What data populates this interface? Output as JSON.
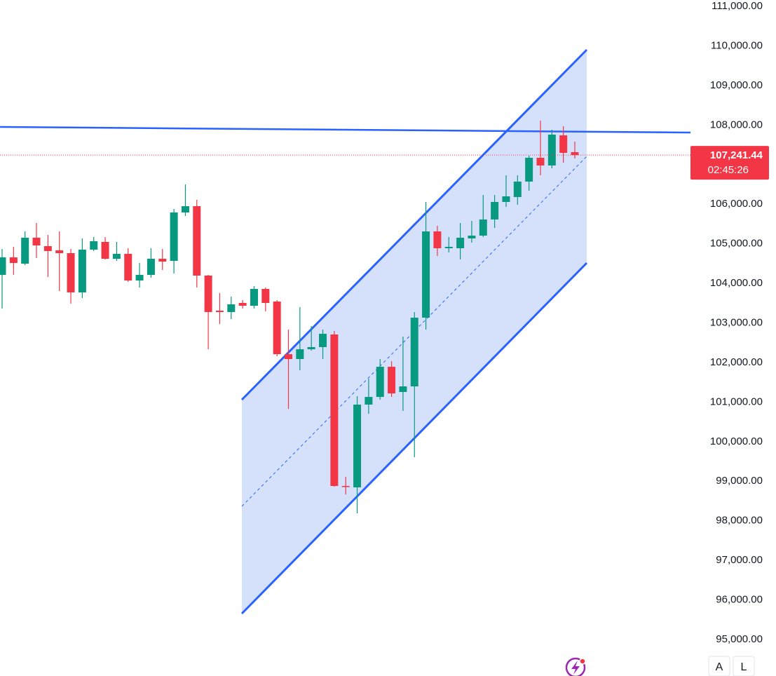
{
  "chart_data": {
    "type": "candlestick",
    "open": [
      104214,
      104657,
      104497,
      105153,
      104940,
      104834,
      104763,
      103771,
      104852,
      105047,
      104621,
      104745,
      104072,
      104214,
      104621,
      104568,
      105791,
      105950,
      104196,
      103310,
      103275,
      103505,
      103434,
      103859,
      103540,
      102211,
      102087,
      102335,
      102389,
      102708,
      98880,
      98845,
      100936,
      101130,
      101892,
      101255,
      101396,
      103133,
      105312,
      104887,
      104887,
      105135,
      105206,
      105614,
      106057,
      106181,
      106571,
      107173,
      106978,
      107740,
      107315
    ],
    "high": [
      104869,
      104923,
      105312,
      105525,
      105224,
      105312,
      104869,
      105135,
      105171,
      105171,
      105047,
      104887,
      104515,
      104887,
      104869,
      105879,
      106500,
      106110,
      104214,
      103753,
      103664,
      103576,
      103930,
      103895,
      103576,
      102832,
      103399,
      102920,
      102832,
      102796,
      99110,
      101148,
      101591,
      102087,
      102034,
      102654,
      103275,
      106057,
      105454,
      105171,
      105525,
      105578,
      106234,
      106234,
      106730,
      106730,
      107226,
      108112,
      107882,
      107970,
      107581
    ],
    "low": [
      103363,
      104214,
      104462,
      104639,
      104161,
      103806,
      103487,
      103629,
      104816,
      104604,
      104568,
      104037,
      103895,
      104143,
      104338,
      104249,
      105702,
      103895,
      102335,
      102973,
      103097,
      103363,
      103363,
      103292,
      102158,
      100829,
      101804,
      102300,
      102087,
      98862,
      98667,
      98189,
      100705,
      101060,
      101130,
      100776,
      99607,
      102832,
      104692,
      104781,
      104604,
      105029,
      105171,
      105401,
      105933,
      105986,
      106340,
      106730,
      106907,
      107049,
      107155
    ],
    "close": [
      104657,
      104515,
      105153,
      104958,
      104816,
      104763,
      103771,
      104852,
      105064,
      104621,
      104745,
      104072,
      104214,
      104621,
      104550,
      105791,
      105950,
      104196,
      103275,
      103275,
      103470,
      103434,
      103859,
      103505,
      102211,
      102087,
      102335,
      102389,
      102725,
      98880,
      98862,
      100936,
      101130,
      101892,
      101219,
      101396,
      103133,
      105312,
      104887,
      104923,
      105153,
      105206,
      105614,
      106057,
      106198,
      106571,
      107173,
      106978,
      107758,
      107297,
      107241.44
    ],
    "up_color": "#089981",
    "down_color": "#f23645",
    "ylim": [
      95000,
      111000
    ],
    "yticks": [
      {
        "value": 95000,
        "label": "95,000.00"
      },
      {
        "value": 96000,
        "label": "96,000.00"
      },
      {
        "value": 97000,
        "label": "97,000.00"
      },
      {
        "value": 98000,
        "label": "98,000.00"
      },
      {
        "value": 99000,
        "label": "99,000.00"
      },
      {
        "value": 100000,
        "label": "100,000.00"
      },
      {
        "value": 101000,
        "label": "101,000.00"
      },
      {
        "value": 102000,
        "label": "102,000.00"
      },
      {
        "value": 103000,
        "label": "103,000.00"
      },
      {
        "value": 104000,
        "label": "104,000.00"
      },
      {
        "value": 105000,
        "label": "105,000.00"
      },
      {
        "value": 106000,
        "label": "106,000.00"
      },
      {
        "value": 107000,
        "label": "107,000.00"
      },
      {
        "value": 108000,
        "label": "108,000.00"
      },
      {
        "value": 109000,
        "label": "109,000.00"
      },
      {
        "value": 110000,
        "label": "110,000.00"
      },
      {
        "value": 111000,
        "label": "111,000.00"
      }
    ],
    "last_price": {
      "value": 107241.44,
      "label": "107,241.44"
    },
    "countdown": "02:45:26"
  },
  "buttons": [
    "A",
    "L"
  ]
}
